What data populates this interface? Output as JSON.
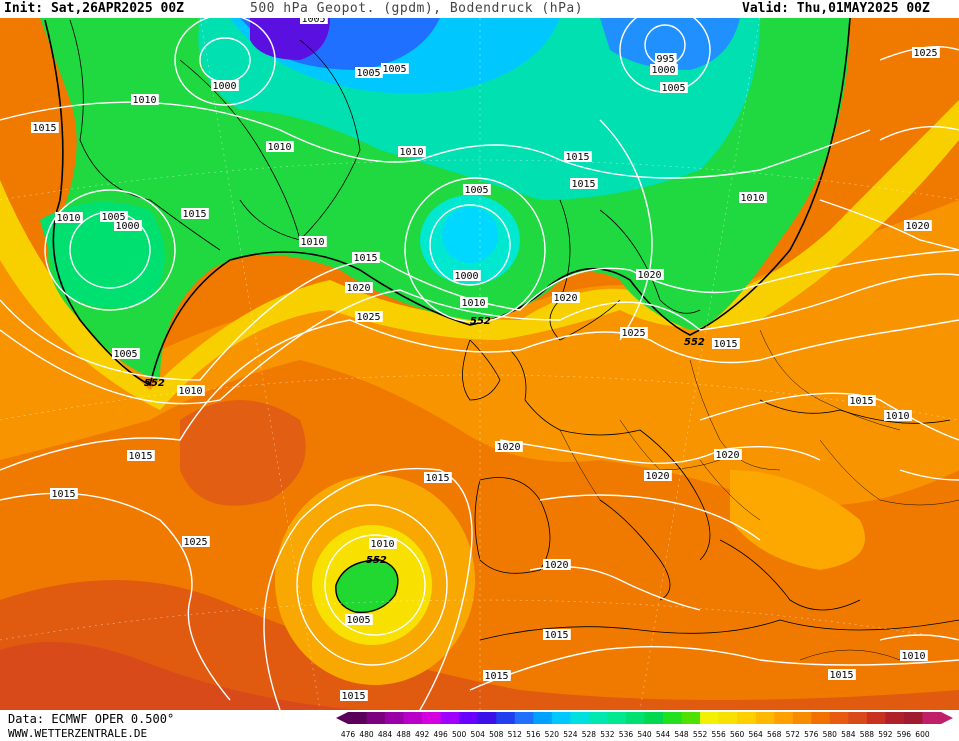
{
  "header": {
    "init": "Init: Sat,26APR2025 00Z",
    "title": "500 hPa Geopot. (gpdm), Bodendruck (hPa)",
    "valid": "Valid: Thu,01MAY2025 00Z"
  },
  "footer": {
    "data_source": "Data: ECMWF OPER 0.500°",
    "website": "WWW.WETTERZENTRALE.DE"
  },
  "scale": {
    "values": [
      "476",
      "480",
      "484",
      "488",
      "492",
      "496",
      "500",
      "504",
      "508",
      "512",
      "516",
      "520",
      "524",
      "528",
      "532",
      "536",
      "540",
      "544",
      "548",
      "552",
      "556",
      "560",
      "564",
      "568",
      "572",
      "576",
      "580",
      "584",
      "588",
      "592",
      "596",
      "600"
    ],
    "colors": [
      "#5a005a",
      "#7a0080",
      "#9a00a8",
      "#b800c8",
      "#d400e0",
      "#a000ff",
      "#6a00ff",
      "#3c10e8",
      "#2040f0",
      "#2070ff",
      "#00a0ff",
      "#00c8ff",
      "#00e0e0",
      "#00e8b0",
      "#00e890",
      "#00e070",
      "#00d850",
      "#20e020",
      "#50e000",
      "#f0f000",
      "#f8e000",
      "#ffd000",
      "#ffb800",
      "#ffa000",
      "#f88c00",
      "#f07000",
      "#e85a10",
      "#d84a1a",
      "#c83020",
      "#b02028",
      "#a01a30",
      "#c0206a"
    ]
  },
  "map": {
    "contour_552_label": "552",
    "isobar_labels": [
      {
        "text": "1005"
      },
      {
        "text": "1000"
      },
      {
        "text": "1010"
      },
      {
        "text": "1015"
      },
      {
        "text": "1005"
      },
      {
        "text": "1005"
      },
      {
        "text": "1010"
      },
      {
        "text": "1010"
      },
      {
        "text": "1005"
      },
      {
        "text": "1000"
      },
      {
        "text": "1010"
      },
      {
        "text": "1015"
      },
      {
        "text": "1015"
      },
      {
        "text": "1010"
      },
      {
        "text": "995"
      },
      {
        "text": "1000"
      },
      {
        "text": "1005"
      },
      {
        "text": "1025"
      },
      {
        "text": "1010"
      },
      {
        "text": "1005"
      },
      {
        "text": "1000"
      },
      {
        "text": "1015"
      },
      {
        "text": "1010"
      },
      {
        "text": "1015"
      },
      {
        "text": "1020"
      },
      {
        "text": "1025"
      },
      {
        "text": "1020"
      },
      {
        "text": "1020"
      },
      {
        "text": "1025"
      },
      {
        "text": "1015"
      },
      {
        "text": "1020"
      },
      {
        "text": "1005"
      },
      {
        "text": "1010"
      },
      {
        "text": "1015"
      },
      {
        "text": "1015"
      },
      {
        "text": "1010"
      },
      {
        "text": "1020"
      },
      {
        "text": "1020"
      },
      {
        "text": "1020"
      },
      {
        "text": "1015"
      },
      {
        "text": "1025"
      },
      {
        "text": "1010"
      },
      {
        "text": "1005"
      },
      {
        "text": "1020"
      },
      {
        "text": "1015"
      },
      {
        "text": "1015"
      },
      {
        "text": "1015"
      },
      {
        "text": "1015"
      },
      {
        "text": "1010"
      },
      {
        "text": "1015"
      }
    ]
  }
}
